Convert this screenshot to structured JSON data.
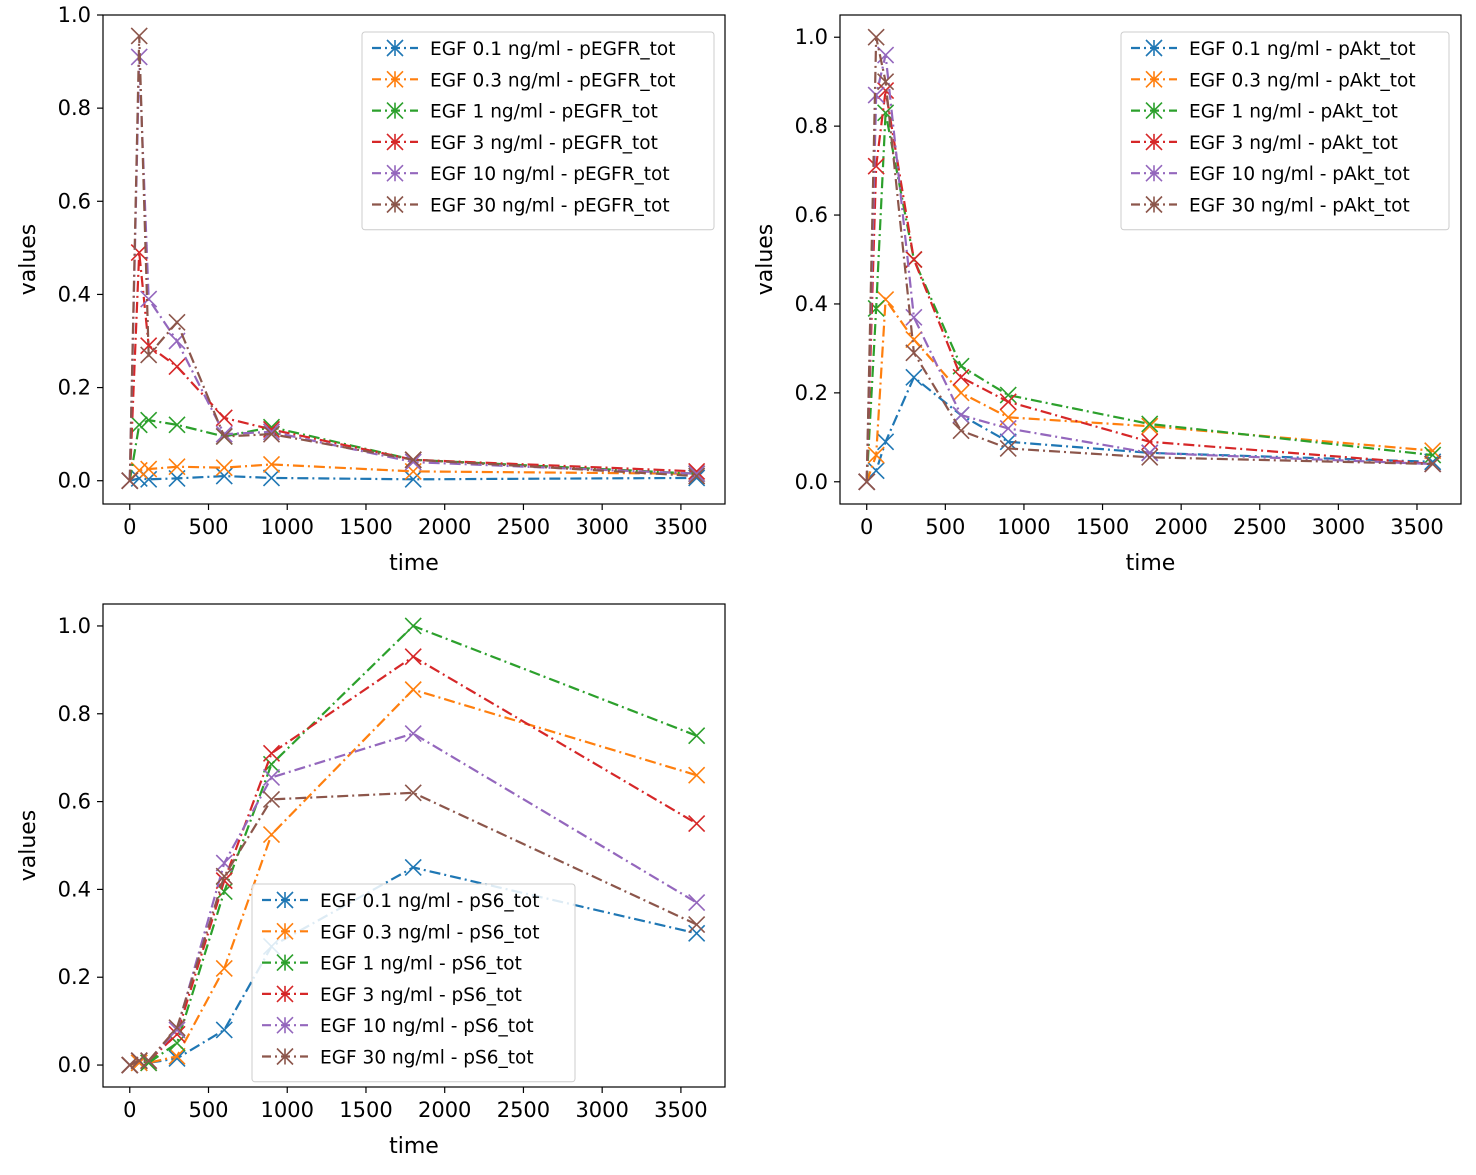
{
  "colors": {
    "EGF 0.1 ng/ml": "#1f77b4",
    "EGF 0.3 ng/ml": "#ff7f0e",
    "EGF 1 ng/ml": "#2ca02c",
    "EGF 3 ng/ml": "#d62728",
    "EGF 10 ng/ml": "#9467bd",
    "EGF 30 ng/ml": "#8c564b"
  },
  "chart_data": [
    {
      "type": "line",
      "xlabel": "time",
      "ylabel": "values",
      "xlim": [
        -170,
        3780
      ],
      "ylim": [
        -0.05,
        1.0
      ],
      "xticks": [
        0,
        500,
        1000,
        1500,
        2000,
        2500,
        3000,
        3500
      ],
      "yticks": [
        0.0,
        0.2,
        0.4,
        0.6,
        0.8,
        1.0
      ],
      "legend_position": "upper right",
      "marker": "x",
      "line_style": "dash-dot",
      "grid": false,
      "x": [
        0,
        60,
        120,
        300,
        600,
        900,
        1800,
        3600
      ],
      "series": [
        {
          "name": "EGF 0.1 ng/ml - pEGFR_tot",
          "values": [
            0.0,
            0.005,
            0.003,
            0.005,
            0.01,
            0.006,
            0.003,
            0.006
          ]
        },
        {
          "name": "EGF 0.3 ng/ml - pEGFR_tot",
          "values": [
            0.0,
            0.022,
            0.025,
            0.03,
            0.028,
            0.035,
            0.02,
            0.015
          ]
        },
        {
          "name": "EGF 1 ng/ml - pEGFR_tot",
          "values": [
            0.0,
            0.12,
            0.13,
            0.12,
            0.095,
            0.115,
            0.045,
            0.015
          ]
        },
        {
          "name": "EGF 3 ng/ml - pEGFR_tot",
          "values": [
            0.0,
            0.49,
            0.29,
            0.245,
            0.135,
            0.11,
            0.045,
            0.02
          ]
        },
        {
          "name": "EGF 10 ng/ml - pEGFR_tot",
          "values": [
            0.0,
            0.91,
            0.39,
            0.3,
            0.1,
            0.105,
            0.04,
            0.015
          ]
        },
        {
          "name": "EGF 30 ng/ml - pEGFR_tot",
          "values": [
            0.0,
            0.955,
            0.27,
            0.34,
            0.095,
            0.1,
            0.045,
            0.01
          ]
        }
      ]
    },
    {
      "type": "line",
      "xlabel": "time",
      "ylabel": "values",
      "xlim": [
        -170,
        3780
      ],
      "ylim": [
        -0.05,
        1.05
      ],
      "xticks": [
        0,
        500,
        1000,
        1500,
        2000,
        2500,
        3000,
        3500
      ],
      "yticks": [
        0.0,
        0.2,
        0.4,
        0.6,
        0.8,
        1.0
      ],
      "legend_position": "upper right",
      "marker": "x",
      "line_style": "dash-dot",
      "grid": false,
      "x": [
        0,
        60,
        120,
        300,
        600,
        900,
        1800,
        3600
      ],
      "series": [
        {
          "name": "EGF 0.1 ng/ml - pAkt_tot",
          "values": [
            0.0,
            0.025,
            0.09,
            0.235,
            0.15,
            0.09,
            0.065,
            0.045
          ]
        },
        {
          "name": "EGF 0.3 ng/ml - pAkt_tot",
          "values": [
            0.0,
            0.06,
            0.41,
            0.32,
            0.2,
            0.145,
            0.125,
            0.07
          ]
        },
        {
          "name": "EGF 1 ng/ml - pAkt_tot",
          "values": [
            0.0,
            0.39,
            0.83,
            0.5,
            0.26,
            0.195,
            0.13,
            0.06
          ]
        },
        {
          "name": "EGF 3 ng/ml - pAkt_tot",
          "values": [
            0.0,
            0.71,
            0.88,
            0.5,
            0.235,
            0.18,
            0.09,
            0.04
          ]
        },
        {
          "name": "EGF 10 ng/ml - pAkt_tot",
          "values": [
            0.0,
            0.87,
            0.96,
            0.37,
            0.15,
            0.12,
            0.065,
            0.04
          ]
        },
        {
          "name": "EGF 30 ng/ml - pAkt_tot",
          "values": [
            0.0,
            1.0,
            0.9,
            0.29,
            0.115,
            0.075,
            0.055,
            0.04
          ]
        }
      ]
    },
    {
      "type": "line",
      "xlabel": "time",
      "ylabel": "values",
      "xlim": [
        -170,
        3780
      ],
      "ylim": [
        -0.05,
        1.05
      ],
      "xticks": [
        0,
        500,
        1000,
        1500,
        2000,
        2500,
        3000,
        3500
      ],
      "yticks": [
        0.0,
        0.2,
        0.4,
        0.6,
        0.8,
        1.0
      ],
      "legend_position": "lower left",
      "marker": "x",
      "line_style": "dash-dot",
      "grid": false,
      "x": [
        0,
        60,
        120,
        300,
        600,
        900,
        1800,
        3600
      ],
      "series": [
        {
          "name": "EGF 0.1 ng/ml - pS6_tot",
          "values": [
            0.0,
            0.005,
            0.005,
            0.015,
            0.08,
            0.27,
            0.45,
            0.3
          ]
        },
        {
          "name": "EGF 0.3 ng/ml - pS6_tot",
          "values": [
            0.0,
            0.005,
            0.005,
            0.02,
            0.22,
            0.525,
            0.855,
            0.66
          ]
        },
        {
          "name": "EGF 1 ng/ml - pS6_tot",
          "values": [
            0.0,
            0.01,
            0.005,
            0.05,
            0.395,
            0.685,
            1.0,
            0.75
          ]
        },
        {
          "name": "EGF 3 ng/ml - pS6_tot",
          "values": [
            0.0,
            0.01,
            0.01,
            0.07,
            0.42,
            0.71,
            0.93,
            0.55
          ]
        },
        {
          "name": "EGF 10 ng/ml - pS6_tot",
          "values": [
            0.0,
            0.01,
            0.01,
            0.08,
            0.46,
            0.655,
            0.755,
            0.37
          ]
        },
        {
          "name": "EGF 30 ng/ml - pS6_tot",
          "values": [
            0.0,
            0.01,
            0.01,
            0.085,
            0.43,
            0.605,
            0.62,
            0.32
          ]
        }
      ]
    }
  ]
}
